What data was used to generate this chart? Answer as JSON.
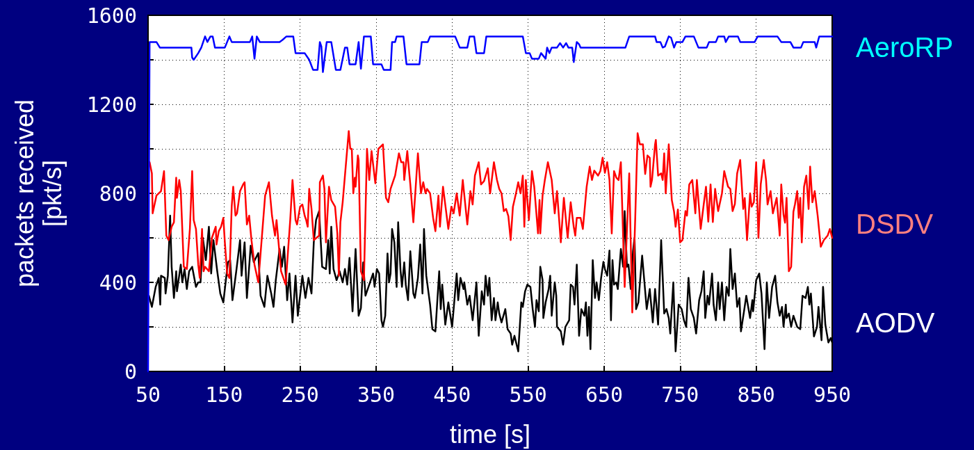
{
  "chart_data": {
    "type": "line",
    "xlabel": "time [s]",
    "ylabel": "packets received\n[pkt/s]",
    "xlim": [
      50,
      950
    ],
    "xticks": [
      50,
      150,
      250,
      350,
      450,
      550,
      650,
      750,
      850,
      950
    ],
    "ylim": [
      0,
      1600
    ],
    "yticks": [
      0,
      {
        "value": 200,
        "label": null
      },
      400,
      {
        "value": 600,
        "label": null
      },
      800,
      {
        "value": 1000,
        "label": null
      },
      1200,
      {
        "value": 1400,
        "label": null
      },
      1600
    ],
    "grid": true,
    "legend": false,
    "marker": "none",
    "line_style": "solid",
    "series": [
      {
        "name": "AeroRP",
        "color": "#0000ff",
        "x": [
          50,
          52,
          61,
          65.5,
          107,
          108,
          110,
          116,
          120,
          125,
          128,
          132,
          135,
          138,
          151,
          157,
          160,
          184,
          187,
          190,
          193,
          197,
          223,
          227,
          232,
          241,
          244,
          256,
          262,
          267,
          273,
          276,
          278,
          280,
          285,
          291,
          297,
          303,
          309,
          312,
          315,
          323,
          327,
          330,
          334,
          343,
          346,
          349,
          357,
          360,
          369,
          371,
          375,
          377,
          386,
          390,
          393,
          407,
          410,
          418,
          421,
          454,
          460,
          470,
          473,
          479,
          482,
          492,
          495,
          543,
          547,
          552,
          555,
          564,
          567,
          573,
          575,
          578,
          581,
          588,
          592,
          596,
          600,
          603,
          608,
          610,
          614,
          617,
          619,
          678,
          683,
          717,
          719,
          724,
          727,
          730,
          735,
          738,
          742,
          745,
          753,
          757,
          768,
          774,
          785,
          788,
          797,
          800,
          808,
          810,
          814,
          826,
          829,
          848,
          852,
          878,
          883,
          895,
          899,
          909,
          912,
          927,
          929,
          933,
          945,
          950
        ],
        "values": [
          0,
          1480,
          1480,
          1455,
          1455,
          1410,
          1400,
          1430,
          1455,
          1505,
          1480,
          1505,
          1505,
          1455,
          1455,
          1505,
          1480,
          1480,
          1505,
          1405,
          1505,
          1480,
          1480,
          1490,
          1505,
          1505,
          1430,
          1430,
          1400,
          1355,
          1355,
          1480,
          1460,
          1345,
          1480,
          1480,
          1355,
          1355,
          1455,
          1455,
          1380,
          1380,
          1480,
          1360,
          1505,
          1505,
          1380,
          1380,
          1380,
          1355,
          1355,
          1480,
          1480,
          1505,
          1505,
          1380,
          1380,
          1380,
          1480,
          1480,
          1505,
          1505,
          1455,
          1455,
          1505,
          1505,
          1430,
          1430,
          1505,
          1505,
          1430,
          1430,
          1405,
          1405,
          1430,
          1405,
          1455,
          1430,
          1455,
          1455,
          1475,
          1455,
          1475,
          1455,
          1455,
          1390,
          1480,
          1470,
          1455,
          1455,
          1505,
          1505,
          1480,
          1480,
          1455,
          1460,
          1505,
          1500,
          1455,
          1480,
          1480,
          1505,
          1505,
          1455,
          1455,
          1480,
          1480,
          1505,
          1505,
          1480,
          1505,
          1505,
          1480,
          1480,
          1505,
          1505,
          1480,
          1480,
          1455,
          1455,
          1480,
          1480,
          1455,
          1505,
          1505,
          1505
        ]
      },
      {
        "name": "DSDV",
        "color": "#ff0000",
        "x": [
          52,
          55,
          56,
          61,
          67,
          71,
          74,
          77,
          81,
          84,
          87,
          88,
          91,
          93,
          97,
          101,
          105,
          108,
          110,
          113,
          116,
          118,
          121,
          123,
          125,
          130,
          134,
          139,
          140,
          143,
          146,
          149,
          151,
          154,
          157,
          160,
          162,
          165,
          167,
          171,
          175,
          177,
          180,
          183,
          186,
          190,
          195,
          204,
          209,
          213,
          217,
          219,
          225,
          231,
          237,
          240,
          244,
          246,
          250,
          253,
          256,
          258,
          260,
          262,
          265,
          268,
          275,
          276,
          280,
          282,
          284,
          288,
          291,
          296,
          299,
          301,
          303,
          306,
          314,
          316,
          318,
          320,
          322,
          323,
          326,
          327,
          330,
          334,
          338,
          341,
          344,
          349,
          353,
          359,
          363,
          366,
          369,
          375,
          380,
          383,
          386,
          387,
          391,
          395,
          399,
          405,
          409,
          412,
          415,
          417,
          421,
          425,
          428,
          432,
          434,
          438,
          445,
          449,
          452,
          456,
          460,
          464,
          470,
          474,
          477,
          480,
          485,
          488,
          492,
          497,
          500,
          505,
          509,
          512,
          515,
          518,
          521,
          524,
          527,
          530,
          534,
          537,
          540,
          543,
          545,
          547,
          551,
          555,
          558,
          563,
          565,
          566,
          569,
          572,
          576,
          581,
          585,
          588,
          593,
          597,
          602,
          606,
          610,
          612,
          614,
          619,
          622,
          627,
          631,
          634,
          637,
          642,
          645,
          648,
          651,
          654,
          657,
          660,
          663,
          666,
          669,
          672,
          677,
          683,
          687,
          691,
          694,
          697,
          701,
          704,
          707,
          710,
          711,
          713,
          717,
          718,
          721,
          725,
          727,
          729,
          731,
          735,
          739,
          742,
          744,
          747,
          750,
          753,
          757,
          759,
          762,
          766,
          770,
          772,
          777,
          781,
          784,
          787,
          790,
          793,
          796,
          800,
          805,
          808,
          813,
          816,
          819,
          822,
          825,
          829,
          833,
          835,
          838,
          842,
          844,
          847,
          850,
          853,
          856,
          860,
          863,
          865,
          869,
          872,
          877,
          881,
          883,
          886,
          888,
          890,
          893,
          896,
          899,
          901,
          904,
          906,
          908,
          910,
          913,
          916,
          919,
          921,
          924,
          927,
          931,
          935,
          939,
          944,
          947,
          950
        ],
        "values": [
          940,
          890,
          710,
          790,
          810,
          900,
          610,
          590,
          650,
          670,
          870,
          780,
          860,
          810,
          470,
          460,
          640,
          900,
          680,
          640,
          480,
          420,
          640,
          450,
          470,
          450,
          600,
          650,
          570,
          630,
          650,
          690,
          580,
          440,
          420,
          740,
          830,
          700,
          710,
          810,
          840,
          850,
          660,
          700,
          590,
          480,
          400,
          790,
          850,
          700,
          610,
          680,
          450,
          390,
          680,
          860,
          680,
          660,
          740,
          750,
          700,
          680,
          650,
          820,
          730,
          590,
          610,
          850,
          880,
          820,
          580,
          830,
          770,
          740,
          620,
          430,
          670,
          760,
          1080,
          1000,
          1000,
          800,
          870,
          830,
          970,
          950,
          450,
          410,
          1000,
          860,
          990,
          845,
          1000,
          1020,
          780,
          760,
          820,
          880,
          980,
          940,
          940,
          860,
          990,
          840,
          670,
          980,
          800,
          850,
          800,
          820,
          800,
          690,
          630,
          790,
          650,
          830,
          640,
          740,
          710,
          800,
          700,
          860,
          660,
          810,
          750,
          880,
          940,
          840,
          855,
          913,
          800,
          940,
          860,
          820,
          800,
          720,
          730,
          697,
          590,
          740,
          800,
          850,
          800,
          880,
          650,
          860,
          680,
          900,
          830,
          620,
          770,
          620,
          790,
          860,
          940,
          860,
          710,
          810,
          580,
          780,
          600,
          760,
          650,
          610,
          690,
          690,
          640,
          830,
          920,
          860,
          902,
          880,
          900,
          960,
          892,
          940,
          861,
          620,
          900,
          871,
          860,
          940,
          380,
          890,
          265,
          700,
          1070,
          1020,
          1020,
          887,
          970,
          960,
          830,
          861,
          1020,
          1040,
          880,
          890,
          860,
          980,
          800,
          1020,
          770,
          717,
          650,
          727,
          580,
          590,
          720,
          700,
          840,
          860,
          710,
          860,
          640,
          750,
          830,
          673,
          840,
          671,
          820,
          720,
          800,
          900,
          830,
          820,
          720,
          753,
          890,
          950,
          730,
          779,
          590,
          800,
          740,
          760,
          940,
          600,
          840,
          950,
          860,
          750,
          810,
          710,
          780,
          610,
          840,
          704,
          668,
          780,
          450,
          470,
          717,
          750,
          810,
          690,
          780,
          580,
          830,
          880,
          730,
          920,
          760,
          810,
          697,
          560,
          590,
          610,
          640,
          600
        ]
      },
      {
        "name": "AODV",
        "color": "#000000",
        "x": [
          51,
          55,
          60,
          64,
          66,
          67,
          72,
          73,
          76,
          79,
          81,
          84,
          87,
          88,
          93,
          95,
          98,
          101,
          104,
          108,
          113,
          116,
          119,
          122,
          126,
          130,
          133,
          136,
          141,
          145,
          149,
          152,
          155,
          158,
          161,
          166,
          171,
          173,
          177,
          180,
          185,
          189,
          195,
          198,
          203,
          207,
          212,
          215,
          218,
          223,
          226,
          229,
          233,
          236,
          240,
          244,
          247,
          253,
          257,
          261,
          265,
          268,
          271,
          275,
          279,
          284,
          287,
          289,
          291,
          294,
          298,
          302,
          306,
          309,
          312,
          315,
          319,
          323,
          327,
          330,
          333,
          336,
          341,
          346,
          348,
          351,
          354,
          357,
          359,
          362,
          365,
          367,
          369,
          371,
          374,
          377,
          379,
          382,
          384,
          387,
          389,
          392,
          395,
          399,
          401,
          405,
          408,
          411,
          413,
          416,
          421,
          424,
          428,
          433,
          435,
          437,
          441,
          445,
          450,
          456,
          458,
          461,
          465,
          466,
          470,
          473,
          477,
          482,
          485,
          489,
          492,
          494,
          497,
          499,
          502,
          505,
          507,
          510,
          512,
          515,
          520,
          523,
          527,
          529,
          532,
          537,
          541,
          543,
          546,
          549,
          553,
          556,
          559,
          561,
          564,
          566,
          569,
          570,
          573,
          577,
          579,
          581,
          585,
          587,
          588,
          593,
          596,
          599,
          604,
          606,
          609,
          611,
          614,
          617,
          620,
          624,
          626,
          628,
          630,
          632,
          635,
          638,
          640,
          643,
          646,
          649,
          651,
          654,
          657,
          659,
          661,
          663,
          666,
          668,
          672,
          675,
          677,
          680,
          682,
          685,
          688,
          690,
          692,
          695,
          700,
          703,
          706,
          710,
          714,
          717,
          721,
          725,
          729,
          732,
          735,
          737,
          741,
          744,
          748,
          752,
          755,
          758,
          761,
          764,
          768,
          771,
          775,
          778,
          781,
          783,
          786,
          788,
          792,
          794,
          797,
          800,
          802,
          805,
          808,
          811,
          814,
          816,
          819,
          822,
          825,
          828,
          830,
          834,
          837,
          842,
          845,
          846,
          850,
          854,
          857,
          861,
          864,
          867,
          871,
          875,
          878,
          881,
          884,
          886,
          889,
          890,
          893,
          896,
          899,
          904,
          908,
          911,
          915,
          918,
          920,
          922,
          926,
          930,
          932,
          936,
          938,
          941,
          945,
          948,
          950
        ],
        "values": [
          340,
          290,
          380,
          420,
          300,
          430,
          420,
          350,
          430,
          700,
          470,
          330,
          450,
          360,
          480,
          400,
          460,
          370,
          450,
          470,
          380,
          400,
          400,
          600,
          500,
          650,
          440,
          590,
          450,
          350,
          310,
          400,
          490,
          500,
          320,
          450,
          590,
          430,
          580,
          330,
          565,
          491,
          532,
          340,
          290,
          430,
          350,
          290,
          410,
          550,
          470,
          560,
          320,
          440,
          220,
          430,
          250,
          430,
          330,
          420,
          350,
          580,
          680,
          720,
          470,
          460,
          590,
          440,
          650,
          460,
          410,
          450,
          400,
          460,
          390,
          510,
          270,
          550,
          250,
          285,
          490,
          340,
          390,
          440,
          380,
          460,
          440,
          230,
          200,
          250,
          530,
          400,
          440,
          640,
          580,
          380,
          670,
          460,
          380,
          490,
          390,
          320,
          540,
          350,
          330,
          420,
          570,
          350,
          640,
          430,
          300,
          190,
          180,
          450,
          280,
          390,
          210,
          310,
          200,
          440,
          320,
          420,
          370,
          400,
          300,
          340,
          230,
          400,
          160,
          360,
          300,
          430,
          340,
          420,
          230,
          330,
          230,
          310,
          260,
          220,
          280,
          190,
          170,
          120,
          160,
          90,
          310,
          290,
          360,
          390,
          380,
          280,
          200,
          320,
          270,
          470,
          410,
          240,
          310,
          370,
          430,
          250,
          400,
          340,
          200,
          180,
          120,
          200,
          230,
          390,
          380,
          300,
          480,
          160,
          280,
          250,
          310,
          160,
          290,
          100,
          500,
          330,
          400,
          320,
          420,
          492,
          460,
          430,
          543,
          230,
          500,
          390,
          400,
          370,
          550,
          470,
          720,
          470,
          480,
          370,
          540,
          600,
          280,
          310,
          520,
          400,
          280,
          370,
          220,
          370,
          210,
          590,
          260,
          280,
          240,
          170,
          400,
          90,
          300,
          280,
          230,
          200,
          420,
          280,
          240,
          170,
          320,
          360,
          450,
          240,
          340,
          300,
          440,
          300,
          230,
          400,
          280,
          400,
          230,
          380,
          340,
          550,
          370,
          440,
          290,
          330,
          180,
          270,
          340,
          240,
          320,
          270,
          410,
          440,
          350,
          100,
          400,
          240,
          380,
          430,
          310,
          250,
          290,
          200,
          300,
          240,
          260,
          200,
          250,
          200,
          190,
          340,
          330,
          380,
          300,
          350,
          157,
          200,
          290,
          140,
          380,
          210,
          130,
          150,
          130
        ]
      }
    ]
  }
}
